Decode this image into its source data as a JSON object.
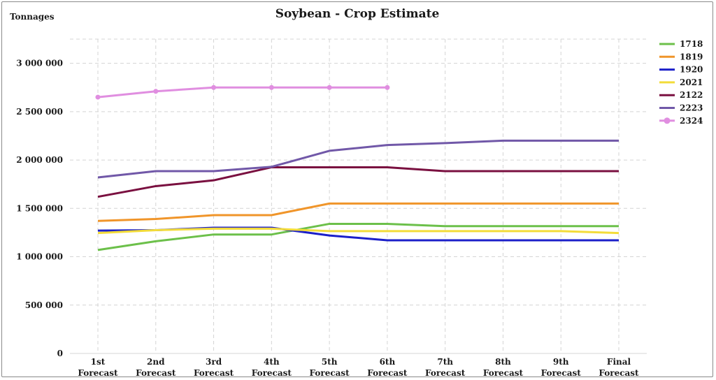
{
  "chart_data": {
    "type": "line",
    "title": "Soybean - Crop Estimate",
    "ylabel": "Tonnages",
    "xlabel": "",
    "categories": [
      [
        "1st",
        "Forecast"
      ],
      [
        "2nd",
        "Forecast"
      ],
      [
        "3rd",
        "Forecast"
      ],
      [
        "4th",
        "Forecast"
      ],
      [
        "5th",
        "Forecast"
      ],
      [
        "6th",
        "Forecast"
      ],
      [
        "7th",
        "Forecast"
      ],
      [
        "8th",
        "Forecast"
      ],
      [
        "9th",
        "Forecast"
      ],
      [
        "Final",
        "Forecast"
      ]
    ],
    "ylim": [
      0,
      3000000
    ],
    "yticks": [
      0,
      500000,
      1000000,
      1500000,
      2000000,
      2500000,
      3000000
    ],
    "ytick_labels": [
      "0",
      "500 000",
      "1 000 000",
      "1 500 000",
      "2 000 000",
      "2 500 000",
      "3 000 000"
    ],
    "grid": true,
    "legend_position": "right",
    "series": [
      {
        "name": "1718",
        "color": "#6cc04a",
        "markers": false,
        "values": [
          1070000,
          1160000,
          1230000,
          1230000,
          1340000,
          1340000,
          1316000,
          1316000,
          1316000,
          1316000
        ]
      },
      {
        "name": "1819",
        "color": "#f0952a",
        "markers": false,
        "values": [
          1370000,
          1390000,
          1430000,
          1430000,
          1550000,
          1550000,
          1550000,
          1550000,
          1550000,
          1550000
        ]
      },
      {
        "name": "1920",
        "color": "#1b1fc9",
        "markers": false,
        "values": [
          1270000,
          1275000,
          1300000,
          1300000,
          1220000,
          1170000,
          1170000,
          1170000,
          1170000,
          1170000
        ]
      },
      {
        "name": "2021",
        "color": "#f3dc3a",
        "markers": false,
        "values": [
          1245000,
          1275000,
          1290000,
          1290000,
          1265000,
          1265000,
          1265000,
          1265000,
          1265000,
          1245000
        ]
      },
      {
        "name": "2122",
        "color": "#7a1040",
        "markers": false,
        "values": [
          1620000,
          1730000,
          1790000,
          1925000,
          1925000,
          1925000,
          1885000,
          1885000,
          1885000,
          1885000
        ]
      },
      {
        "name": "2223",
        "color": "#7158a8",
        "markers": false,
        "values": [
          1820000,
          1885000,
          1885000,
          1930000,
          2095000,
          2155000,
          2175000,
          2200000,
          2200000,
          2200000
        ]
      },
      {
        "name": "2324",
        "color": "#e08ee0",
        "markers": true,
        "values": [
          2650000,
          2710000,
          2750000,
          2750000,
          2750000,
          2750000,
          null,
          null,
          null,
          null
        ]
      }
    ]
  }
}
